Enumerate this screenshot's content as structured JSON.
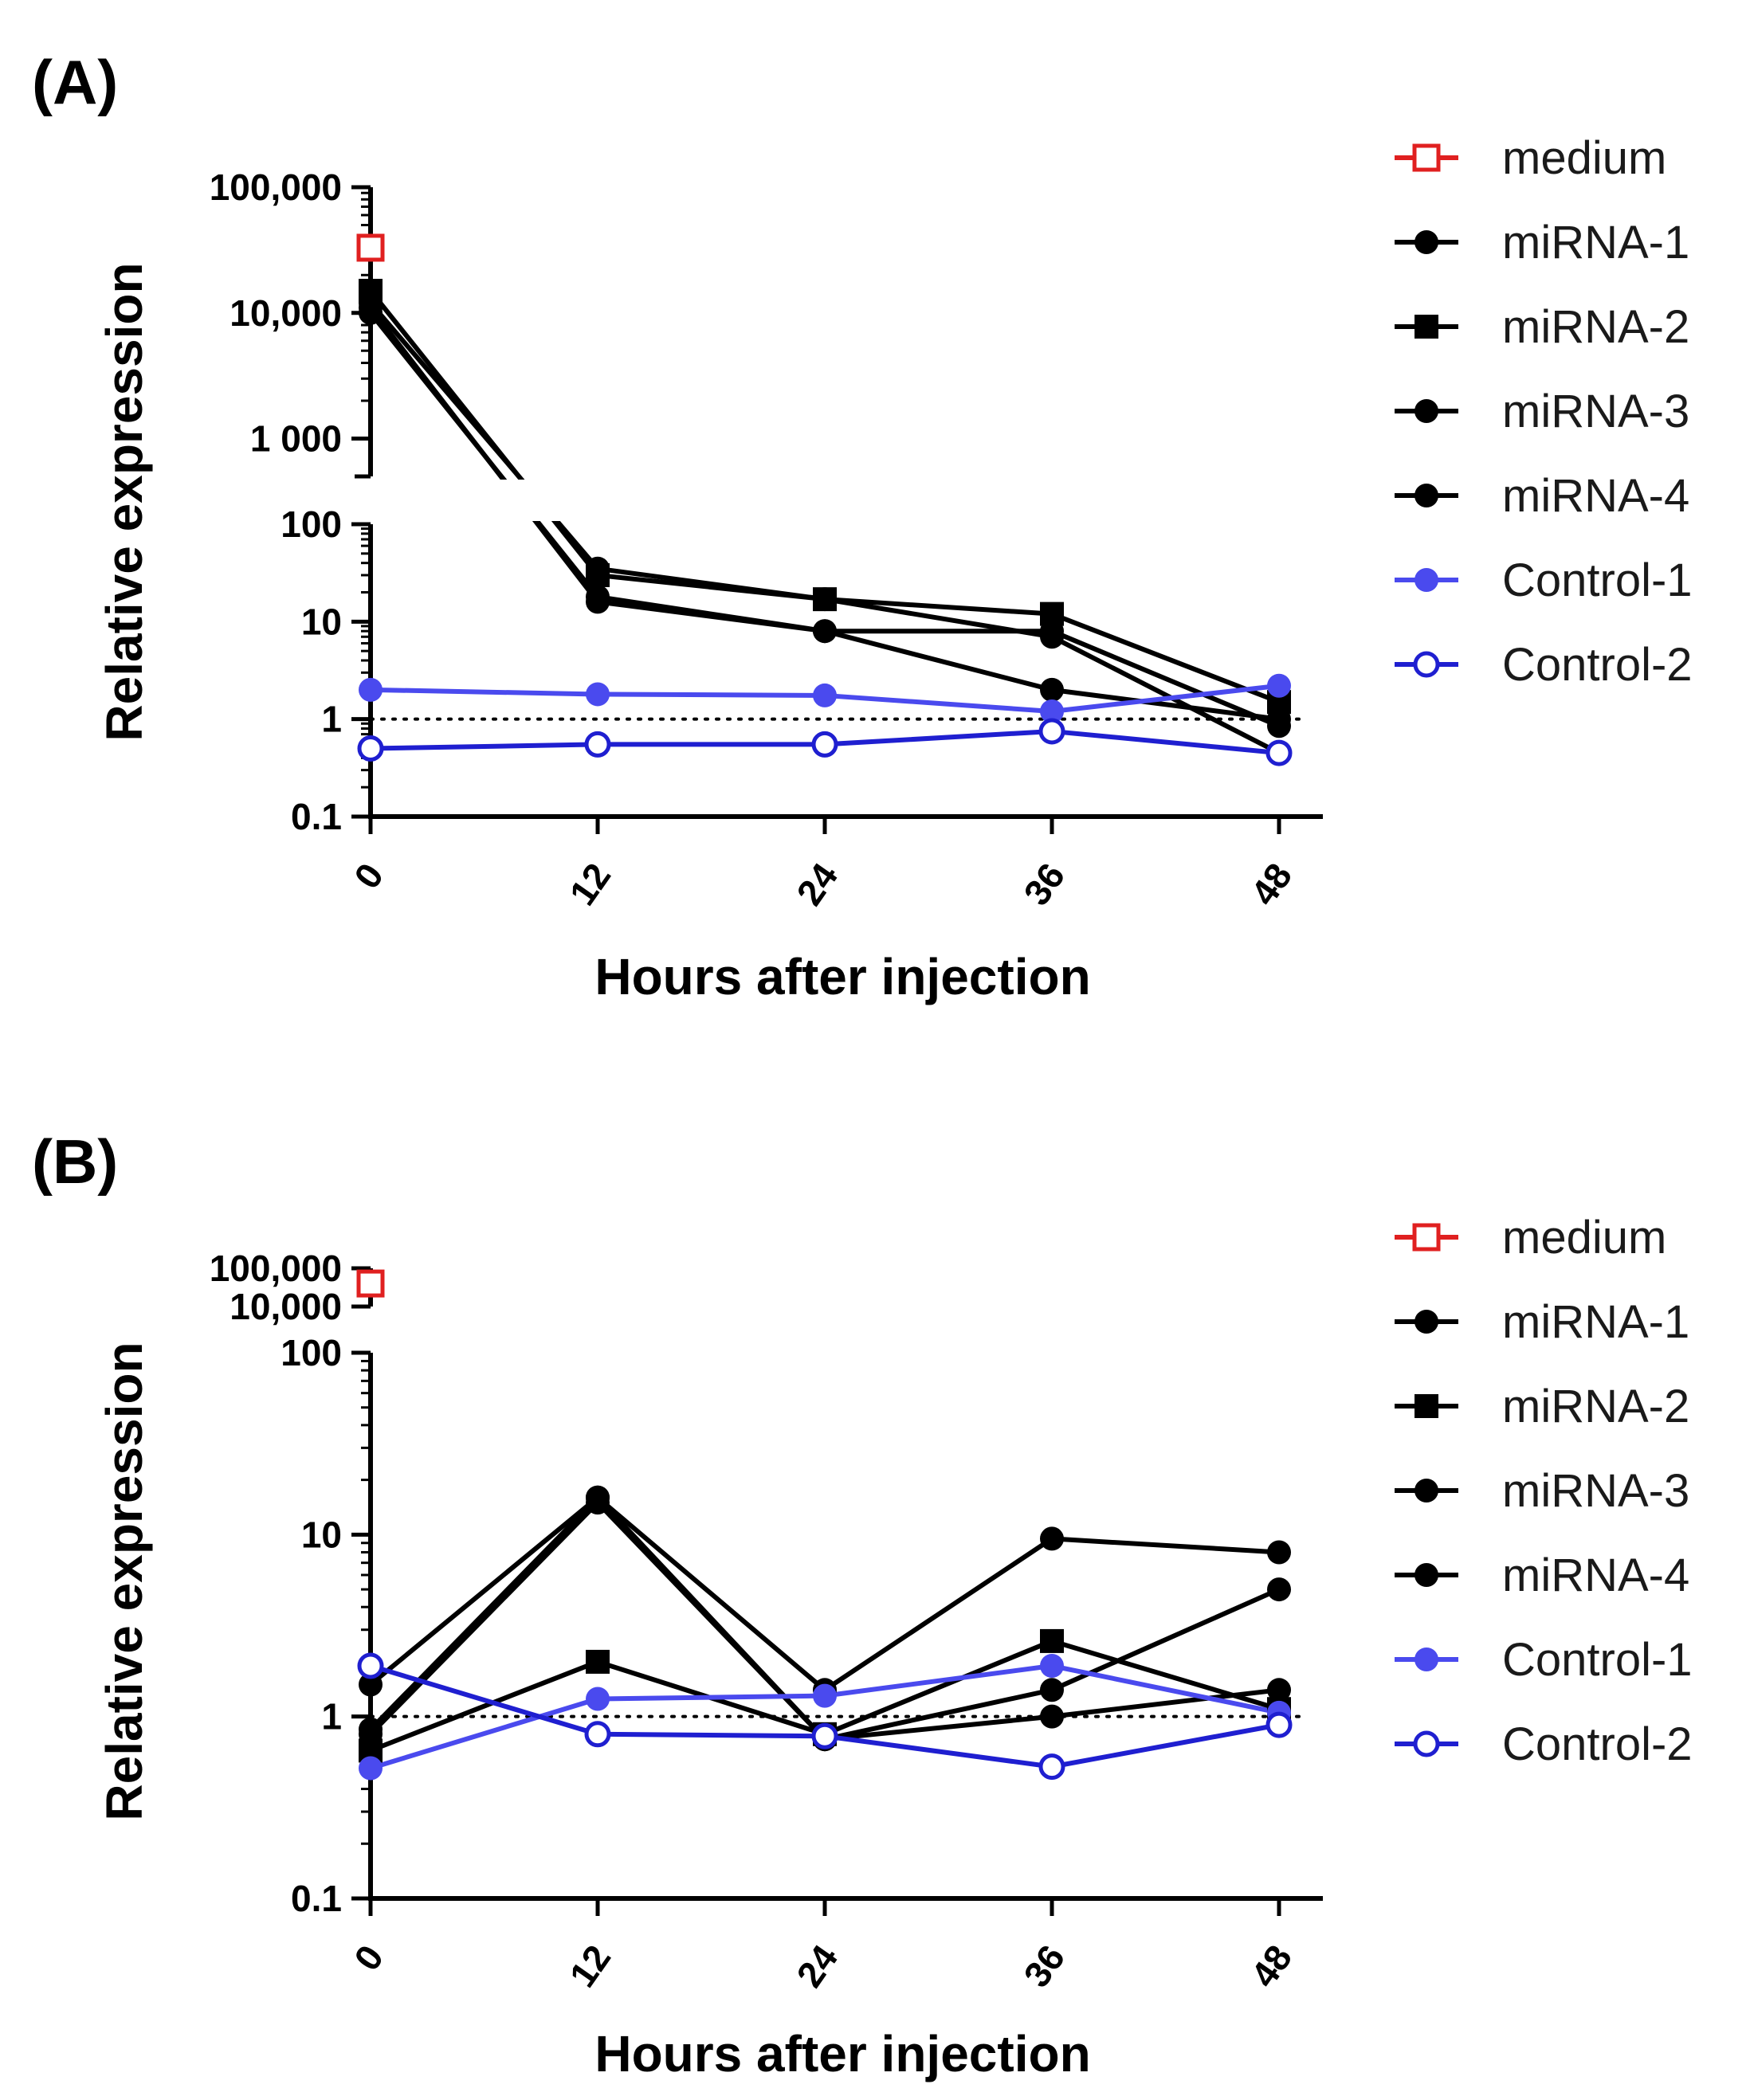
{
  "legend": [
    "medium",
    "miRNA-1",
    "miRNA-2",
    "miRNA-3",
    "miRNA-4",
    "Control-1",
    "Control-2"
  ],
  "colors": {
    "medium": "#e02020",
    "miRNA": "#000000",
    "control1": "#4a4aee",
    "control2": "#1f1fd0"
  },
  "chart_data": [
    {
      "type": "line",
      "panel": "(A)",
      "xlabel": "Hours after injection",
      "ylabel": "Relative expression",
      "x": [
        0,
        12,
        24,
        36,
        48
      ],
      "x_tick_labels": [
        "0",
        "12",
        "24",
        "36",
        "48"
      ],
      "y_scale": "log",
      "y_axis_break": true,
      "y_lower_range": [
        0.1,
        100
      ],
      "y_upper_range": [
        500,
        100000
      ],
      "y_lower_tick_labels": [
        "0.1",
        "1",
        "10",
        "100"
      ],
      "y_upper_tick_labels": [
        "1 000",
        "10,000",
        "100,000"
      ],
      "reference_line": 1,
      "grid": false,
      "legend_position": "right",
      "series": [
        {
          "name": "medium",
          "marker": "open-square",
          "color": "#e02020",
          "values": [
            33000,
            null,
            null,
            null,
            null
          ]
        },
        {
          "name": "miRNA-1",
          "marker": "filled-circle",
          "color": "#000000",
          "values": [
            12000,
            35,
            17,
            7,
            0.45
          ]
        },
        {
          "name": "miRNA-2",
          "marker": "filled-square",
          "color": "#000000",
          "values": [
            15000,
            30,
            17,
            12,
            1.5
          ]
        },
        {
          "name": "miRNA-3",
          "marker": "filled-circle",
          "color": "#000000",
          "values": [
            11000,
            16,
            8,
            2,
            1.0
          ]
        },
        {
          "name": "miRNA-4",
          "marker": "filled-circle",
          "color": "#000000",
          "values": [
            10000,
            18,
            8,
            8,
            0.85
          ]
        },
        {
          "name": "Control-1",
          "marker": "filled-circle",
          "color": "#4a4aee",
          "values": [
            2.0,
            1.8,
            1.75,
            1.2,
            2.2
          ]
        },
        {
          "name": "Control-2",
          "marker": "open-circle",
          "color": "#1f1fd0",
          "values": [
            0.5,
            0.55,
            0.55,
            0.75,
            0.45
          ]
        }
      ]
    },
    {
      "type": "line",
      "panel": "(B)",
      "xlabel": "Hours after injection",
      "ylabel": "Relative expression",
      "x": [
        0,
        12,
        24,
        36,
        48
      ],
      "x_tick_labels": [
        "0",
        "12",
        "24",
        "36",
        "48"
      ],
      "y_scale": "log",
      "y_axis_break": true,
      "y_lower_range": [
        0.1,
        100
      ],
      "y_upper_range": [
        10000,
        100000
      ],
      "y_lower_tick_labels": [
        "0.1",
        "1",
        "10",
        "100"
      ],
      "y_upper_tick_labels": [
        "10,000",
        "100,000"
      ],
      "reference_line": 1,
      "grid": false,
      "legend_position": "right",
      "series": [
        {
          "name": "medium",
          "marker": "open-square",
          "color": "#e02020",
          "values": [
            40000,
            null,
            null,
            null,
            null
          ]
        },
        {
          "name": "miRNA-1",
          "marker": "filled-circle",
          "color": "#000000",
          "values": [
            1.5,
            16,
            1.4,
            9.5,
            8.0
          ]
        },
        {
          "name": "miRNA-2",
          "marker": "filled-square",
          "color": "#000000",
          "values": [
            0.65,
            2.0,
            0.8,
            2.6,
            1.1
          ]
        },
        {
          "name": "miRNA-3",
          "marker": "filled-circle",
          "color": "#000000",
          "values": [
            0.85,
            16,
            0.75,
            1.4,
            5.0
          ]
        },
        {
          "name": "miRNA-4",
          "marker": "filled-circle",
          "color": "#000000",
          "values": [
            0.8,
            15,
            0.75,
            1.0,
            1.4
          ]
        },
        {
          "name": "Control-1",
          "marker": "filled-circle",
          "color": "#4a4aee",
          "values": [
            0.52,
            1.25,
            1.3,
            1.9,
            1.05
          ]
        },
        {
          "name": "Control-2",
          "marker": "open-circle",
          "color": "#1f1fd0",
          "values": [
            1.9,
            0.8,
            0.78,
            0.53,
            0.9
          ]
        }
      ]
    }
  ]
}
